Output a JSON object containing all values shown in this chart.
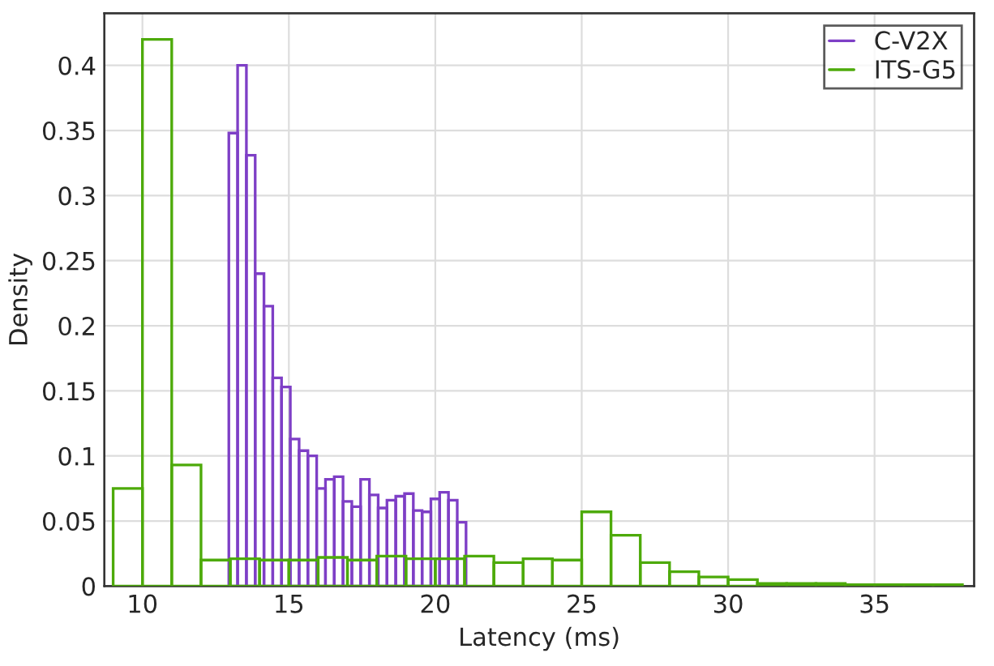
{
  "chart_data": [
    {
      "type": "histogram",
      "xlabel": "Latency (ms)",
      "ylabel": "Density",
      "xlim": [
        8.7,
        38.4
      ],
      "ylim": [
        0,
        0.44
      ],
      "xticks": [
        10,
        15,
        20,
        25,
        30,
        35
      ],
      "yticks": [
        0,
        0.05,
        0.1,
        0.15,
        0.2,
        0.25,
        0.3,
        0.35,
        0.4
      ],
      "grid": true,
      "legend": "top right",
      "bins": [
        12.95,
        13.25,
        13.55,
        13.85,
        14.15,
        14.45,
        14.75,
        15.05,
        15.35,
        15.65,
        15.95,
        16.25,
        16.55,
        16.85,
        17.15,
        17.45,
        17.75,
        18.05,
        18.35,
        18.65,
        18.95,
        19.25,
        19.55,
        19.85,
        20.15,
        20.45,
        20.75,
        21.05
      ],
      "series": [
        {
          "name": "C-V2X",
          "color": "#7e3fc6",
          "values": [
            0.348,
            0.4,
            0.331,
            0.24,
            0.215,
            0.16,
            0.153,
            0.113,
            0.104,
            0.1,
            0.075,
            0.082,
            0.084,
            0.065,
            0.061,
            0.082,
            0.07,
            0.06,
            0.066,
            0.069,
            0.071,
            0.058,
            0.057,
            0.067,
            0.072,
            0.066,
            0.049
          ]
        }
      ]
    },
    {
      "type": "histogram",
      "xlim": [
        8.7,
        38.4
      ],
      "ylim": [
        0,
        0.44
      ],
      "xticks": [
        10,
        15,
        20,
        25,
        30,
        35
      ],
      "yticks": [
        0,
        0.05,
        0.1,
        0.15,
        0.2,
        0.25,
        0.3,
        0.35,
        0.4
      ],
      "tick_labels": false,
      "legend": "top right",
      "bins": [
        9,
        10,
        11,
        12,
        13,
        14,
        15,
        16,
        17,
        18,
        19,
        20,
        21,
        22,
        23,
        24,
        25,
        26,
        27,
        28,
        29,
        30,
        31,
        32,
        33,
        34,
        35,
        36,
        37,
        38
      ],
      "series": [
        {
          "name": "ITS-G5",
          "color": "#4daa0a",
          "values": [
            0.075,
            0.42,
            0.093,
            0.02,
            0.021,
            0.02,
            0.02,
            0.022,
            0.02,
            0.023,
            0.021,
            0.021,
            0.023,
            0.018,
            0.021,
            0.02,
            0.057,
            0.039,
            0.018,
            0.011,
            0.007,
            0.005,
            0.002,
            0.002,
            0.002,
            0.001,
            0.001,
            0.001,
            0.001
          ]
        }
      ]
    }
  ]
}
